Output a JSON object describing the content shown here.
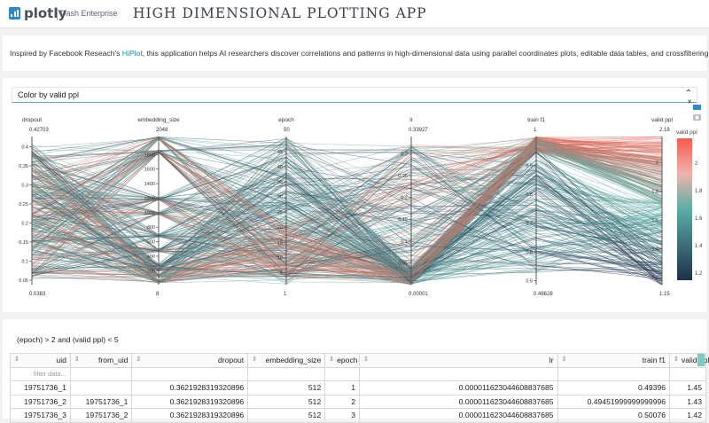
{
  "header": {
    "logo_text": "plotly",
    "logo_sub": "Dash Enterprise",
    "title": "HIGH DIMENSIONAL PLOTTING APP"
  },
  "description": {
    "prefix": "Inspired by Facebook Reseach's ",
    "link_text": "HiPlot",
    "suffix": ", this application helps AI researchers discover correlations and patterns in high-dimensional data using parallel coordinates plots, editable data tables, and crossfiltering."
  },
  "plot": {
    "color_select_value": "Color by valid ppl",
    "colorbar_title": "valid ppl",
    "colorbar_ticks": [
      "2",
      "1.8",
      "1.6",
      "1.4",
      "1.2"
    ],
    "colors": {
      "low": "#1f2f4b",
      "mid": "#5aaea6",
      "high": "#f35c4e"
    }
  },
  "chart_data": {
    "type": "parallel_coordinates",
    "color_by": "valid ppl",
    "dimensions": [
      {
        "name": "dropout",
        "range": [
          0.0383,
          0.42703
        ],
        "top_label": "0.42703",
        "bottom_label": "0.0383",
        "ticks": [
          "0.4",
          "0.35",
          "0.3",
          "0.25",
          "0.2",
          "0.15",
          "0.1",
          "0.05"
        ]
      },
      {
        "name": "embedding_size",
        "range": [
          8,
          2048
        ],
        "top_label": "2048",
        "bottom_label": "8",
        "ticks": [
          "1800",
          "1600",
          "1400",
          "1200",
          "1000",
          "800",
          "600",
          "400",
          "200"
        ]
      },
      {
        "name": "epoch",
        "range": [
          1,
          50
        ],
        "top_label": "50",
        "bottom_label": "1",
        "ticks": [
          "45",
          "40",
          "35",
          "30",
          "25",
          "20",
          "15",
          "10",
          "5"
        ]
      },
      {
        "name": "lr",
        "range": [
          1e-05,
          0.33927
        ],
        "top_label": "0.33927",
        "bottom_label": "0.00001",
        "ticks": [
          "0.3",
          "0.25",
          "0.2",
          "0.15",
          "0.1",
          "0.05"
        ]
      },
      {
        "name": "train f1",
        "range": [
          0.48628,
          1
        ],
        "top_label": "1",
        "bottom_label": "0.48628",
        "ticks": [
          "0.9",
          "0.8",
          "0.7",
          "0.6",
          "0.5"
        ]
      },
      {
        "name": "valid ppl",
        "range": [
          1.15,
          2.18
        ],
        "top_label": "2.18",
        "bottom_label": "1.15",
        "ticks": [
          "2",
          "1.8",
          "1.6",
          "1.4",
          "1.2"
        ]
      }
    ]
  },
  "query": {
    "text": "(epoch) > 2 and (valid ppl) < 5"
  },
  "table": {
    "columns": [
      "uid",
      "from_uid",
      "dropout",
      "embedding_size",
      "epoch",
      "lr",
      "train f1",
      "valid ppl"
    ],
    "filter_placeholder": "filter data...",
    "rows": [
      [
        "19751736_1",
        "",
        "0.3621928319320896",
        "512",
        "1",
        "0.000011623044608837685",
        "0.49396",
        "1.45"
      ],
      [
        "19751736_2",
        "19751736_1",
        "0.3621928319320896",
        "512",
        "2",
        "0.000011623044608837685",
        "0.49451999999999996",
        "1.43"
      ],
      [
        "19751736_3",
        "19751736_2",
        "0.3621928319320896",
        "512",
        "3",
        "0.000011623044608837685",
        "0.50076",
        "1.42"
      ]
    ]
  }
}
